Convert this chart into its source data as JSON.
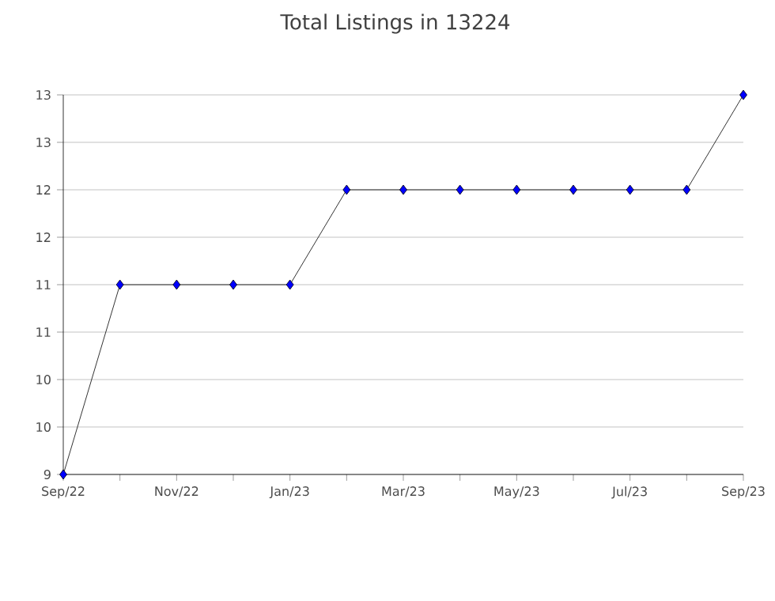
{
  "chart_data": {
    "type": "line",
    "title": "Total Listings in 13224",
    "categories": [
      "Sep/22",
      null,
      "Nov/22",
      null,
      "Jan/23",
      null,
      "Mar/23",
      null,
      "May/23",
      null,
      "Jul/23",
      null,
      "Sep/23"
    ],
    "series": [
      {
        "color": "#000000",
        "values": [
          9,
          11,
          11,
          11,
          11,
          12,
          12,
          12,
          12,
          12,
          12,
          12,
          13
        ]
      }
    ],
    "ylim": [
      9,
      13
    ],
    "yticks": [
      9,
      {
        "value": 9.5,
        "label": "10"
      },
      10,
      {
        "value": 10.5,
        "label": "11"
      },
      11,
      {
        "value": 11.5,
        "label": "12"
      },
      12,
      {
        "value": 12.5,
        "label": "13"
      },
      13
    ],
    "grid": "y",
    "marker": "diamond",
    "line_style": "solid"
  }
}
